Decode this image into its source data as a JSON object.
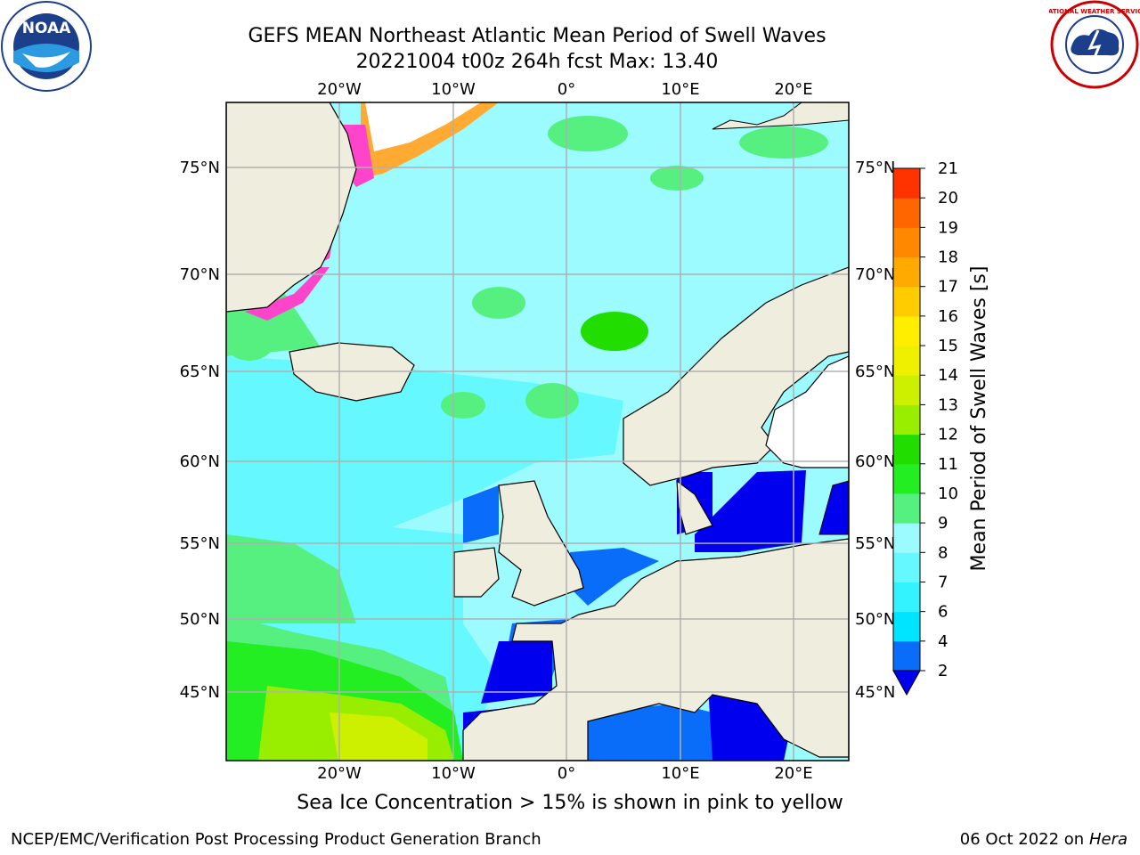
{
  "header": {
    "title_line1": "GEFS MEAN Northeast Atlantic Mean Period of Swell Waves",
    "title_line2": "20221004 t00z 264h fcst   Max: 13.40"
  },
  "logos": {
    "left": "NOAA",
    "right": "NATIONAL WEATHER SERVICE"
  },
  "map": {
    "lon_labels": [
      "20°W",
      "10°W",
      "0°",
      "10°E",
      "20°E"
    ],
    "lat_labels": [
      "75°N",
      "70°N",
      "65°N",
      "60°N",
      "55°N",
      "50°N",
      "45°N"
    ],
    "colors": {
      "land": "#efeddd",
      "ice_white": "#ffffff",
      "ice_pink": "#ff44cc",
      "ice_orange": "#ffaa33",
      "ice_yellow": "#ffe066",
      "grid": "#b0b0b0"
    }
  },
  "colorbar": {
    "label": "Mean Period of Swell Waves [s]",
    "ticks": [
      "2",
      "4",
      "6",
      "7",
      "8",
      "9",
      "10",
      "11",
      "12",
      "13",
      "14",
      "15",
      "16",
      "17",
      "18",
      "19",
      "20",
      "21"
    ],
    "colors": [
      "#0a6dfa",
      "#00e5ff",
      "#33f3ff",
      "#66f8ff",
      "#9bfbff",
      "#55f080",
      "#22ee22",
      "#22dd00",
      "#99ee00",
      "#ccf000",
      "#eef000",
      "#ffee00",
      "#ffcc00",
      "#ffaa00",
      "#ff8800",
      "#ff6600",
      "#ff3300",
      "#ff0000"
    ],
    "under_color": "#0000ee"
  },
  "notes": {
    "sea_ice": "Sea Ice Concentration > 15% is shown in pink to yellow"
  },
  "footer": {
    "left": "NCEP/EMC/Verification Post Processing Product Generation Branch",
    "right_prefix": "06 Oct 2022 on ",
    "right_host": "Hera"
  }
}
